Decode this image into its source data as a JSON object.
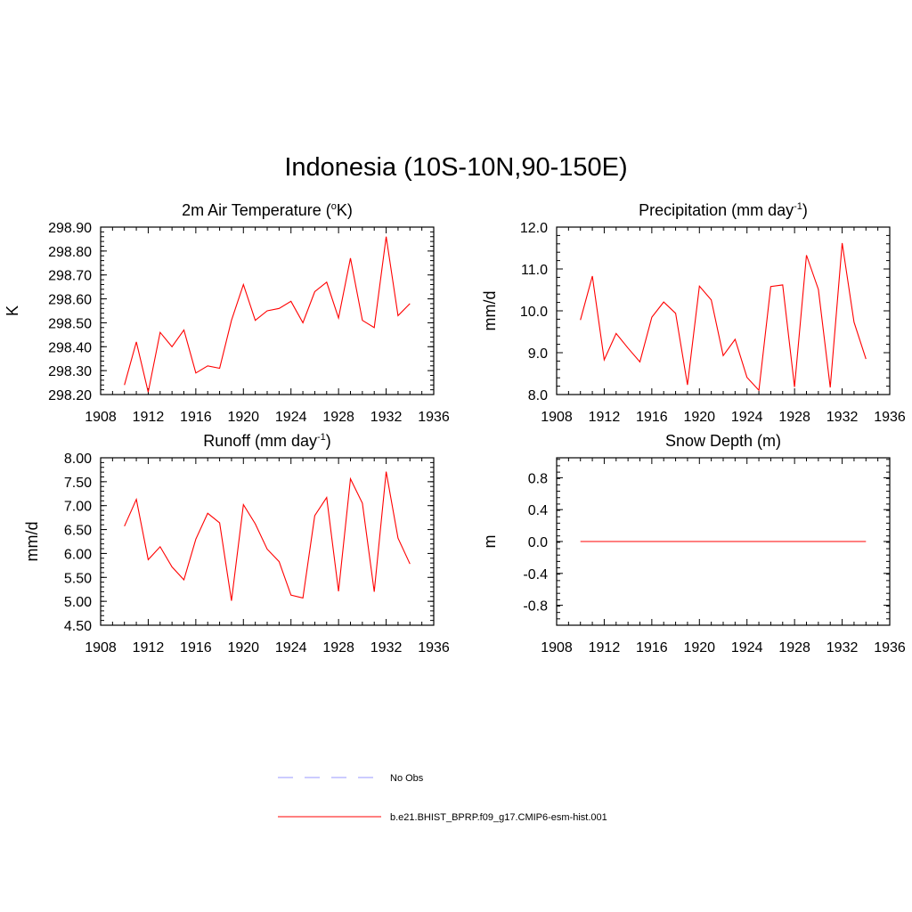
{
  "title": "Indonesia (10S-10N,90-150E)",
  "chart_data": [
    {
      "type": "line",
      "title": {
        "base": "2m Air Temperature (",
        "sup": "o",
        "after": "K)"
      },
      "ylabel": "K",
      "xlim": [
        1908,
        1936
      ],
      "ylim": [
        298.2,
        298.9
      ],
      "xticks": [
        1908,
        1912,
        1916,
        1920,
        1924,
        1928,
        1932,
        1936
      ],
      "yticks": [
        "298.20",
        "298.30",
        "298.40",
        "298.50",
        "298.60",
        "298.70",
        "298.80",
        "298.90"
      ],
      "series": [
        {
          "name": "b.e21.BHIST_BPRP.f09_g17.CMIP6-esm-hist.001",
          "color": "#ff0000",
          "x": [
            1910,
            1911,
            1912,
            1913,
            1914,
            1915,
            1916,
            1917,
            1918,
            1919,
            1920,
            1921,
            1922,
            1923,
            1924,
            1925,
            1926,
            1927,
            1928,
            1929,
            1930,
            1931,
            1932,
            1933,
            1934
          ],
          "y": [
            298.24,
            298.42,
            298.21,
            298.46,
            298.4,
            298.47,
            298.29,
            298.32,
            298.31,
            298.51,
            298.66,
            298.51,
            298.55,
            298.56,
            298.59,
            298.5,
            298.63,
            298.67,
            298.52,
            298.77,
            298.51,
            298.48,
            298.86,
            298.53,
            298.58
          ]
        }
      ]
    },
    {
      "type": "line",
      "title": {
        "base": "Precipitation (mm day",
        "sup": "-1",
        "after": ")"
      },
      "ylabel": "mm/d",
      "xlim": [
        1908,
        1936
      ],
      "ylim": [
        8.0,
        12.0
      ],
      "xticks": [
        1908,
        1912,
        1916,
        1920,
        1924,
        1928,
        1932,
        1936
      ],
      "yticks": [
        "8.0",
        "9.0",
        "10.0",
        "11.0",
        "12.0"
      ],
      "series": [
        {
          "name": "b.e21.BHIST_BPRP.f09_g17.CMIP6-esm-hist.001",
          "color": "#ff0000",
          "x": [
            1910,
            1911,
            1912,
            1913,
            1914,
            1915,
            1916,
            1917,
            1918,
            1919,
            1920,
            1921,
            1922,
            1923,
            1924,
            1925,
            1926,
            1927,
            1928,
            1929,
            1930,
            1931,
            1932,
            1933,
            1934
          ],
          "y": [
            9.78,
            10.83,
            8.83,
            9.46,
            9.11,
            8.78,
            9.85,
            10.21,
            9.94,
            8.23,
            10.59,
            10.26,
            8.93,
            9.32,
            8.41,
            8.1,
            10.58,
            10.62,
            8.18,
            11.33,
            10.51,
            8.17,
            11.62,
            9.73,
            8.85
          ]
        }
      ]
    },
    {
      "type": "line",
      "title": {
        "base": "Runoff (mm day",
        "sup": "-1",
        "after": ")"
      },
      "ylabel": "mm/d",
      "xlim": [
        1908,
        1936
      ],
      "ylim": [
        4.5,
        8.0
      ],
      "xticks": [
        1908,
        1912,
        1916,
        1920,
        1924,
        1928,
        1932,
        1936
      ],
      "yticks": [
        "4.50",
        "5.00",
        "5.50",
        "6.00",
        "6.50",
        "7.00",
        "7.50",
        "8.00"
      ],
      "series": [
        {
          "name": "b.e21.BHIST_BPRP.f09_g17.CMIP6-esm-hist.001",
          "color": "#ff0000",
          "x": [
            1910,
            1911,
            1912,
            1913,
            1914,
            1915,
            1916,
            1917,
            1918,
            1919,
            1920,
            1921,
            1922,
            1923,
            1924,
            1925,
            1926,
            1927,
            1928,
            1929,
            1930,
            1931,
            1932,
            1933,
            1934
          ],
          "y": [
            6.57,
            7.13,
            5.87,
            6.14,
            5.72,
            5.45,
            6.3,
            6.84,
            6.64,
            5.01,
            7.02,
            6.62,
            6.09,
            5.83,
            5.13,
            5.07,
            6.79,
            7.17,
            5.21,
            7.56,
            7.05,
            5.2,
            7.71,
            6.32,
            5.78
          ]
        }
      ]
    },
    {
      "type": "line",
      "title": {
        "base": "Snow Depth (m)",
        "sup": "",
        "after": ""
      },
      "ylabel": "m",
      "xlim": [
        1908,
        1936
      ],
      "ylim": [
        -1.05,
        1.05
      ],
      "xticks": [
        1908,
        1912,
        1916,
        1920,
        1924,
        1928,
        1932,
        1936
      ],
      "yticks": [
        "-0.8",
        "-0.4",
        "0.0",
        "0.4",
        "0.8"
      ],
      "ytick_values": [
        -0.8,
        -0.4,
        0.0,
        0.4,
        0.8
      ],
      "series": [
        {
          "name": "b.e21.BHIST_BPRP.f09_g17.CMIP6-esm-hist.001",
          "color": "#ff0000",
          "x": [
            1910,
            1934
          ],
          "y": [
            0.0,
            0.0
          ]
        }
      ]
    }
  ],
  "legend": [
    {
      "label": "No Obs",
      "color": "#9999ff",
      "style": "dashed"
    },
    {
      "label": "b.e21.BHIST_BPRP.f09_g17.CMIP6-esm-hist.001",
      "color": "#ff0000",
      "style": "solid"
    }
  ]
}
